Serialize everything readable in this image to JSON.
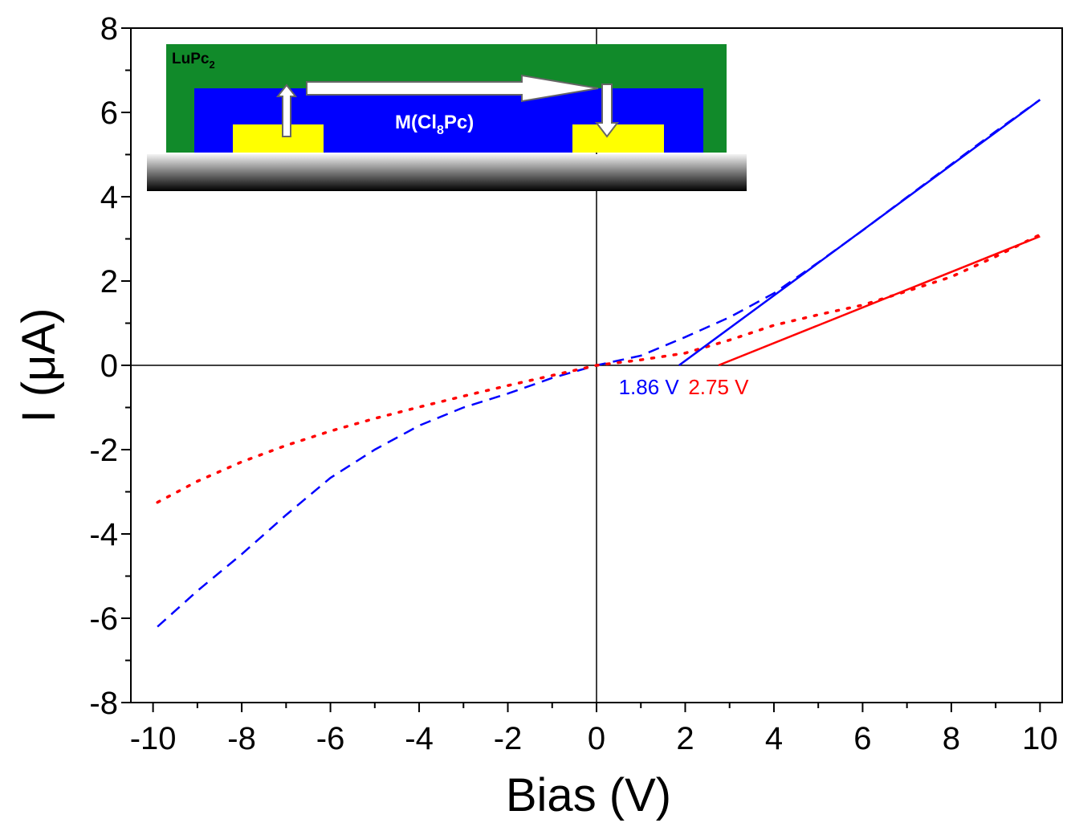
{
  "chart_data": {
    "type": "line",
    "xlabel": "Bias (V)",
    "ylabel": "I (μA)",
    "xlim": [
      -10.5,
      10.5
    ],
    "ylim": [
      -8,
      8
    ],
    "xticks": [
      -10,
      -8,
      -6,
      -4,
      -2,
      0,
      2,
      4,
      6,
      8,
      10
    ],
    "yticks": [
      -8,
      -6,
      -4,
      -2,
      0,
      2,
      4,
      6,
      8
    ],
    "xminorticks": [
      -9,
      -7,
      -5,
      -3,
      -1,
      1,
      3,
      5,
      7,
      9
    ],
    "yminorticks": [
      -7,
      -5,
      -3,
      -1,
      1,
      3,
      5,
      7
    ],
    "grid": false,
    "zero_lines": true,
    "series": [
      {
        "color": "#0000ff",
        "style": "dashed",
        "x": [
          -9.9,
          -9,
          -8,
          -7,
          -6,
          -5,
          -4,
          -3,
          -2,
          -1,
          0,
          1,
          2,
          3,
          4,
          5,
          6,
          7,
          8,
          9,
          10
        ],
        "values": [
          -6.2,
          -5.35,
          -4.48,
          -3.55,
          -2.67,
          -2.0,
          -1.43,
          -1.0,
          -0.67,
          -0.3,
          0,
          0.23,
          0.67,
          1.14,
          1.71,
          2.44,
          3.2,
          3.99,
          4.77,
          5.55,
          6.3
        ]
      },
      {
        "color": "#ff0000",
        "style": "dotted",
        "x": [
          -9.9,
          -9,
          -8,
          -7,
          -6,
          -5,
          -4,
          -3,
          -2,
          -1,
          0,
          1,
          2,
          3,
          4,
          5,
          6,
          7,
          8,
          9,
          10
        ],
        "values": [
          -3.25,
          -2.75,
          -2.29,
          -1.9,
          -1.56,
          -1.26,
          -0.99,
          -0.73,
          -0.48,
          -0.24,
          0,
          0.13,
          0.29,
          0.6,
          0.95,
          1.2,
          1.43,
          1.76,
          2.1,
          2.58,
          3.1
        ]
      },
      {
        "color": "#0000ff",
        "style": "solid",
        "x": [
          1.86,
          10
        ],
        "values": [
          0,
          6.3
        ]
      },
      {
        "color": "#ff0000",
        "style": "solid",
        "x": [
          2.75,
          10
        ],
        "values": [
          0,
          3.06
        ]
      }
    ],
    "annotations": [
      {
        "text": "1.86 V",
        "color": "#0000ff",
        "x": 1.86
      },
      {
        "text": "2.75 V",
        "color": "#ff0000",
        "x": 2.75
      }
    ],
    "inset": {
      "top_layer": [
        "LuPc",
        "2"
      ],
      "channel": [
        "M(Cl",
        "8",
        "Pc)"
      ]
    }
  }
}
